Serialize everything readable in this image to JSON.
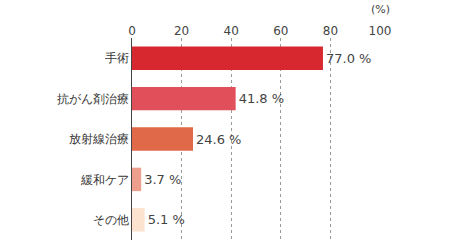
{
  "chart_data": {
    "type": "bar",
    "orientation": "horizontal",
    "x_label": "(%)",
    "categories": [
      "手術",
      "抗がん剤治療",
      "放射線治療",
      "緩和ケア",
      "その他"
    ],
    "values": [
      77.0,
      41.8,
      24.6,
      3.7,
      5.1
    ],
    "value_labels": [
      "77.0 %",
      "41.8 %",
      "24.6 %",
      "3.7 %",
      "5.1 %"
    ],
    "colors": [
      "#d7282f",
      "#e04f5a",
      "#e0694a",
      "#ee9e8c",
      "#fbe3cf"
    ],
    "xlim": [
      0,
      100
    ],
    "xticks": [
      0,
      20,
      40,
      60,
      80,
      100
    ],
    "grid": true,
    "data_labels": true
  }
}
